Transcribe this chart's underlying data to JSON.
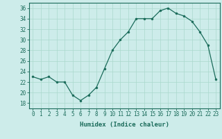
{
  "x": [
    0,
    1,
    2,
    3,
    4,
    5,
    6,
    7,
    8,
    9,
    10,
    11,
    12,
    13,
    14,
    15,
    16,
    17,
    18,
    19,
    20,
    21,
    22,
    23
  ],
  "y": [
    23,
    22.5,
    23,
    22,
    22,
    19.5,
    18.5,
    19.5,
    21,
    24.5,
    28,
    30,
    31.5,
    34,
    34,
    34,
    35.5,
    36,
    35,
    34.5,
    33.5,
    31.5,
    29,
    22.5
  ],
  "line_color": "#1a6b5a",
  "marker": "o",
  "marker_size": 2.0,
  "bg_color": "#cdecea",
  "grid_color": "#aad8cc",
  "xlabel": "Humidex (Indice chaleur)",
  "ylim": [
    17,
    37
  ],
  "xlim": [
    -0.5,
    23.5
  ],
  "yticks": [
    18,
    20,
    22,
    24,
    26,
    28,
    30,
    32,
    34,
    36
  ],
  "xticks": [
    0,
    1,
    2,
    3,
    4,
    5,
    6,
    7,
    8,
    9,
    10,
    11,
    12,
    13,
    14,
    15,
    16,
    17,
    18,
    19,
    20,
    21,
    22,
    23
  ],
  "label_fontsize": 6.5,
  "tick_fontsize": 5.5
}
